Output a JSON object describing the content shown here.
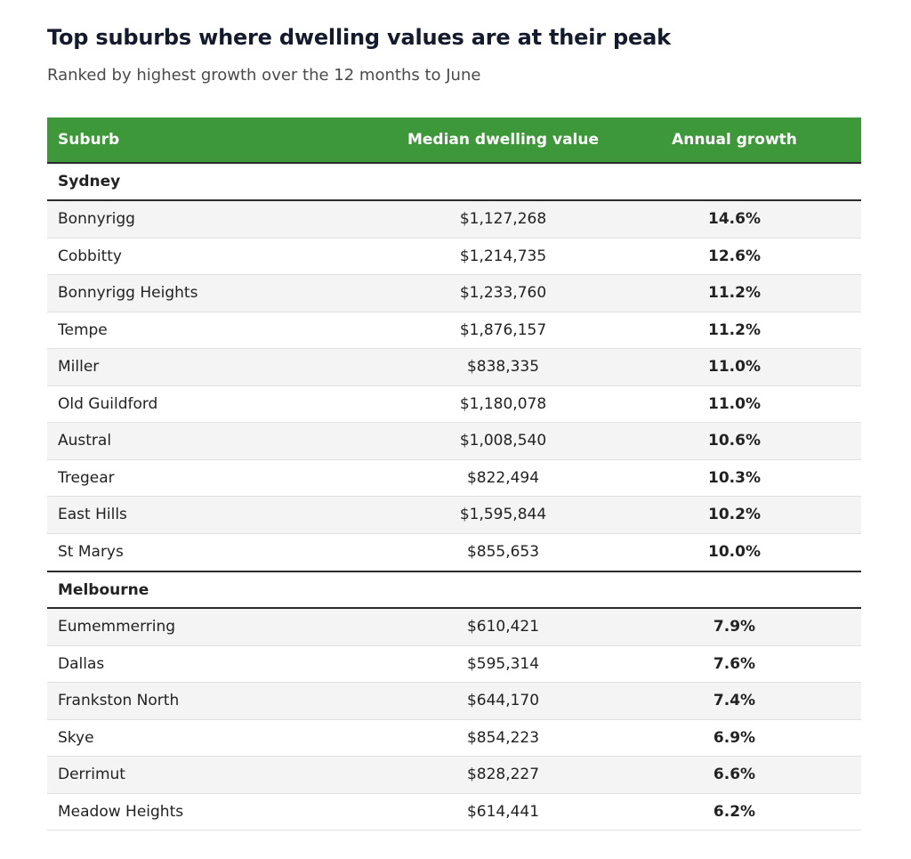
{
  "chart_data": {
    "type": "table",
    "title": "Top suburbs where dwelling values are at their peak",
    "subtitle": "Ranked by highest growth over the 12 months to June",
    "columns": [
      "Suburb",
      "Median dwelling value",
      "Annual growth"
    ],
    "groups": [
      {
        "name": "Sydney",
        "rows": [
          {
            "suburb": "Bonnyrigg",
            "value": "$1,127,268",
            "growth": "14.6%"
          },
          {
            "suburb": "Cobbitty",
            "value": "$1,214,735",
            "growth": "12.6%"
          },
          {
            "suburb": "Bonnyrigg Heights",
            "value": "$1,233,760",
            "growth": "11.2%"
          },
          {
            "suburb": "Tempe",
            "value": "$1,876,157",
            "growth": "11.2%"
          },
          {
            "suburb": "Miller",
            "value": "$838,335",
            "growth": "11.0%"
          },
          {
            "suburb": "Old Guildford",
            "value": "$1,180,078",
            "growth": "11.0%"
          },
          {
            "suburb": "Austral",
            "value": "$1,008,540",
            "growth": "10.6%"
          },
          {
            "suburb": "Tregear",
            "value": "$822,494",
            "growth": "10.3%"
          },
          {
            "suburb": "East Hills",
            "value": "$1,595,844",
            "growth": "10.2%"
          },
          {
            "suburb": "St Marys",
            "value": "$855,653",
            "growth": "10.0%"
          }
        ]
      },
      {
        "name": "Melbourne",
        "rows": [
          {
            "suburb": "Eumemmerring",
            "value": "$610,421",
            "growth": "7.9%"
          },
          {
            "suburb": "Dallas",
            "value": "$595,314",
            "growth": "7.6%"
          },
          {
            "suburb": "Frankston North",
            "value": "$644,170",
            "growth": "7.4%"
          },
          {
            "suburb": "Skye",
            "value": "$854,223",
            "growth": "6.9%"
          },
          {
            "suburb": "Derrimut",
            "value": "$828,227",
            "growth": "6.6%"
          },
          {
            "suburb": "Meadow Heights",
            "value": "$614,441",
            "growth": "6.2%"
          }
        ]
      }
    ]
  },
  "colors": {
    "header_bg": "#3d9839",
    "header_text": "#ffffff",
    "title_text": "#141b2d",
    "alt_row_bg": "#f4f4f4"
  }
}
